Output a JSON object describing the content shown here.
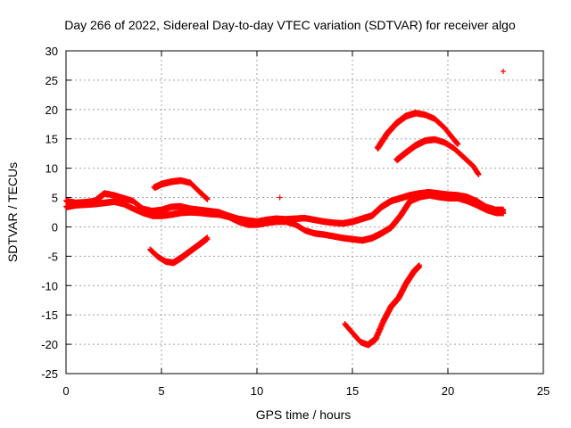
{
  "chart_data": {
    "type": "scatter",
    "title": "Day 266 of 2022, Sidereal Day-to-day VTEC variation (SDTVAR) for receiver algo",
    "xlabel": "GPS time / hours",
    "ylabel": "SDTVAR / TECUs",
    "xlim": [
      0,
      25
    ],
    "ylim": [
      -25,
      30
    ],
    "x_ticks": [
      0,
      5,
      10,
      15,
      20,
      25
    ],
    "y_ticks": [
      -25,
      -20,
      -15,
      -10,
      -5,
      0,
      5,
      10,
      15,
      20,
      25,
      30
    ],
    "grid": true,
    "marker": "+",
    "color": "#ff0000",
    "series": [
      {
        "name": "main-upper",
        "x": [
          0,
          0.5,
          1,
          1.5,
          2,
          2.5,
          3,
          3.5,
          4,
          4.5,
          5,
          5.5,
          6,
          6.5,
          7,
          7.5,
          8,
          8.5,
          9,
          9.5,
          10,
          10.5,
          11,
          11.5,
          12,
          12.5,
          13,
          13.5,
          14,
          14.5,
          15,
          15.5,
          16,
          16.5,
          17,
          17.5,
          18,
          18.5,
          19,
          19.5,
          20,
          20.5,
          21,
          21.5,
          22,
          22.5,
          22.9
        ],
        "values": [
          4.5,
          4.2,
          4.3,
          4.5,
          5.8,
          5.5,
          5.0,
          4.5,
          3.2,
          2.8,
          3.0,
          3.5,
          3.6,
          3.2,
          3.0,
          2.8,
          2.6,
          2.0,
          1.5,
          1.2,
          1.0,
          1.3,
          1.5,
          1.4,
          1.5,
          1.6,
          1.3,
          1.0,
          0.8,
          0.7,
          1.0,
          1.5,
          2.0,
          3.5,
          4.5,
          5.0,
          5.5,
          5.8,
          6.0,
          5.8,
          5.6,
          5.5,
          5.2,
          4.5,
          3.5,
          3.0,
          3.0
        ]
      },
      {
        "name": "main-lower",
        "x": [
          0,
          0.5,
          1,
          1.5,
          2,
          2.5,
          3,
          3.5,
          4,
          4.5,
          5,
          5.5,
          6,
          6.5,
          7,
          7.5,
          8,
          8.5,
          9,
          9.5,
          10,
          10.5,
          11,
          11.5,
          12,
          12.5,
          13,
          13.5,
          14,
          14.5,
          15,
          15.5,
          16,
          16.5,
          17,
          17.5,
          18,
          18.5,
          19,
          19.5,
          20,
          20.5,
          21,
          21.5,
          22,
          22.5,
          22.9
        ],
        "values": [
          3.5,
          3.8,
          3.9,
          4.0,
          4.2,
          4.4,
          4.0,
          3.2,
          2.5,
          2.0,
          2.0,
          2.2,
          2.5,
          2.6,
          2.5,
          2.3,
          2.2,
          1.8,
          1.0,
          0.5,
          0.5,
          0.8,
          1.0,
          1.0,
          0.5,
          -0.5,
          -1.0,
          -1.2,
          -1.5,
          -1.8,
          -2.0,
          -2.2,
          -1.8,
          -1.0,
          0.0,
          2.0,
          4.5,
          5.2,
          5.5,
          5.2,
          5.0,
          5.0,
          4.5,
          3.8,
          3.0,
          2.5,
          2.5
        ]
      },
      {
        "name": "arc-mid",
        "x": [
          4.6,
          5.0,
          5.5,
          6.0,
          6.5,
          7.0,
          7.4
        ],
        "values": [
          6.8,
          7.4,
          7.8,
          8.0,
          7.6,
          6.0,
          4.8
        ]
      },
      {
        "name": "dip-left",
        "x": [
          4.4,
          4.8,
          5.2,
          5.6,
          6.0,
          6.5,
          7.0,
          7.4
        ],
        "values": [
          -3.8,
          -5.0,
          -5.8,
          -6.0,
          -5.2,
          -4.0,
          -2.8,
          -1.8
        ]
      },
      {
        "name": "high-arc",
        "x": [
          16.3,
          16.8,
          17.3,
          17.8,
          18.3,
          18.8,
          19.3,
          19.8,
          20.3,
          20.5
        ],
        "values": [
          13.5,
          16.0,
          17.8,
          19.0,
          19.5,
          19.2,
          18.5,
          17.0,
          15.0,
          14.2
        ]
      },
      {
        "name": "mid-arc",
        "x": [
          17.3,
          17.8,
          18.3,
          18.8,
          19.3,
          19.8,
          20.3,
          20.8,
          21.3,
          21.6
        ],
        "values": [
          11.5,
          12.8,
          14.0,
          14.8,
          15.0,
          14.5,
          13.5,
          12.0,
          10.5,
          9.0
        ]
      },
      {
        "name": "deep-dip",
        "x": [
          14.6,
          15.0,
          15.4,
          15.8,
          16.2,
          16.6,
          17.0,
          17.4,
          17.8,
          18.2,
          18.5
        ],
        "values": [
          -16.5,
          -18.0,
          -19.5,
          -20.0,
          -19.0,
          -16.0,
          -13.5,
          -12.0,
          -9.5,
          -7.5,
          -6.5
        ]
      },
      {
        "name": "outliers",
        "x": [
          11.2,
          22.9
        ],
        "values": [
          5.0,
          26.5
        ]
      }
    ]
  }
}
